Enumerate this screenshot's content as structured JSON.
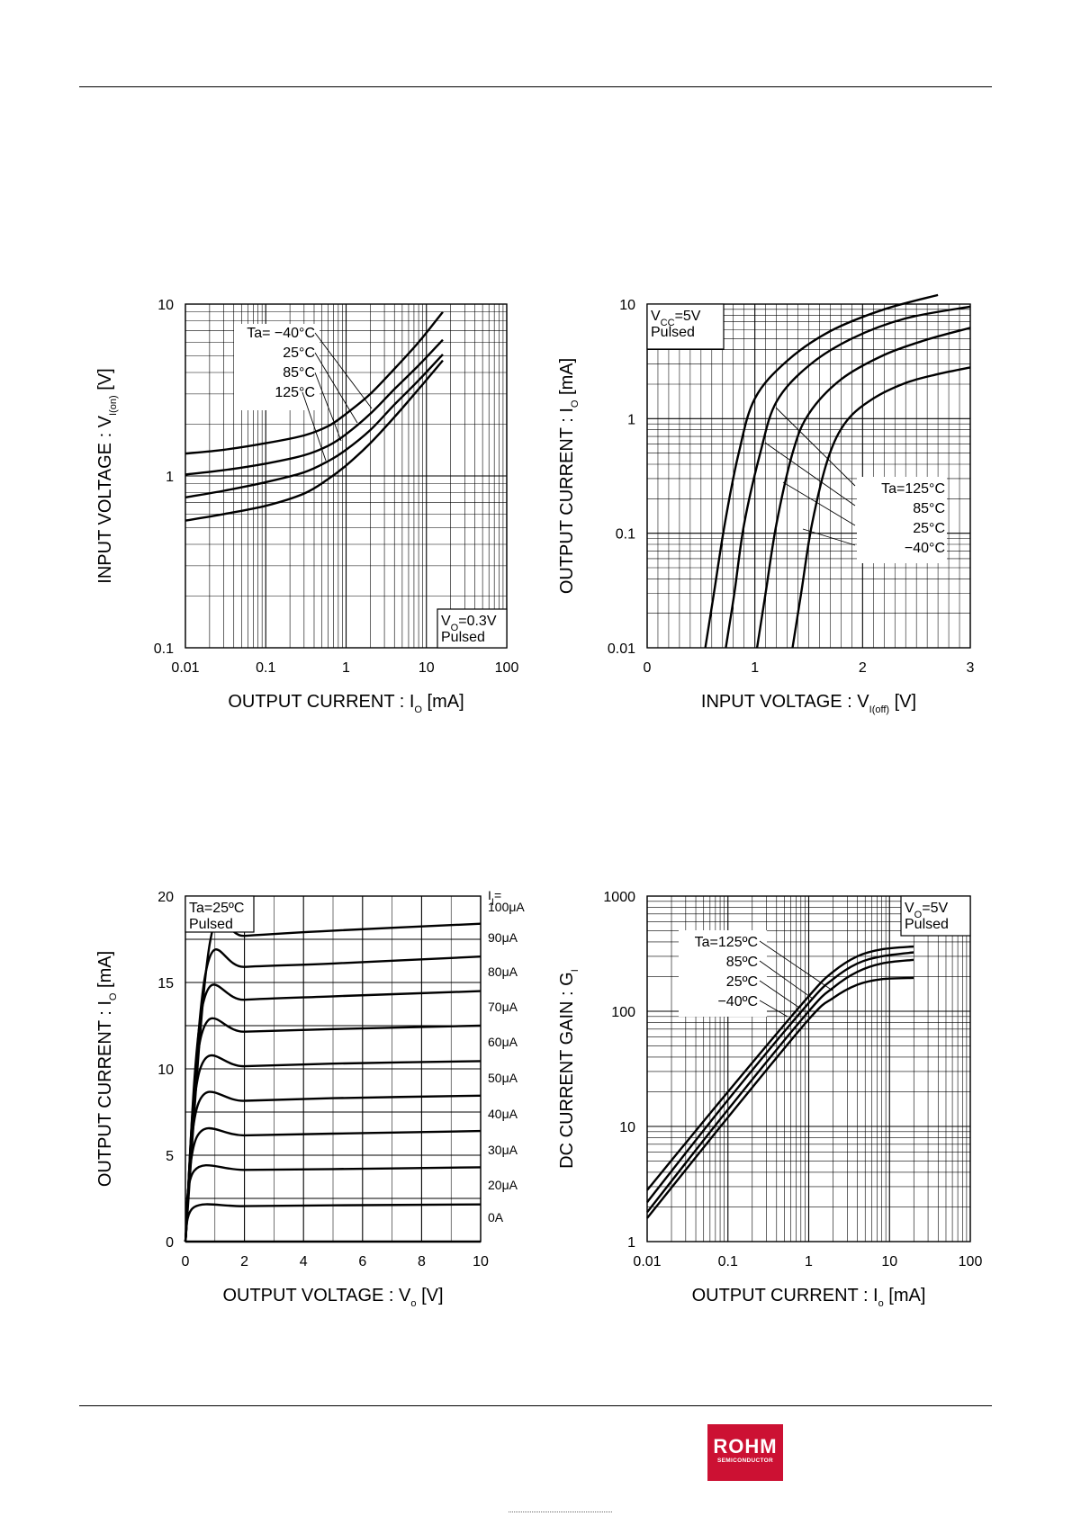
{
  "brand": {
    "logo_text": "ROHM",
    "logo_subtext": "SEMICONDUCTOR",
    "color": "#cc1133"
  },
  "chart_data": [
    {
      "type": "line",
      "xscale": "log",
      "yscale": "log",
      "xlim": [
        0.01,
        100
      ],
      "ylim": [
        0.1,
        10
      ],
      "x_ticks": [
        "0.01",
        "0.1",
        "1",
        "10",
        "100"
      ],
      "y_ticks": [
        "0.1",
        "1",
        "10"
      ],
      "xlabel": {
        "main": "OUTPUT CURRENT : I",
        "sub": "O",
        "unit": " [mA]"
      },
      "ylabel": {
        "main": "INPUT VOLTAGE : V",
        "sub": "I(on)",
        "unit": " [V]"
      },
      "condition": {
        "line1_main": "V",
        "line1_sub": "O",
        "line1_rest": "=0.3V",
        "line2": "Pulsed"
      },
      "legend": {
        "lines": [
          "Ta= −40°C",
          "25°C",
          "85°C",
          "125°C"
        ]
      },
      "series": [
        {
          "name": "Ta=−40°C",
          "x": [
            0.01,
            0.03,
            0.1,
            0.3,
            0.6,
            1,
            2,
            4,
            8,
            16
          ],
          "y": [
            1.35,
            1.42,
            1.55,
            1.72,
            1.95,
            2.3,
            3.0,
            4.2,
            6.0,
            9.0
          ]
        },
        {
          "name": "25°C",
          "x": [
            0.01,
            0.03,
            0.1,
            0.3,
            0.6,
            1,
            2,
            4,
            8,
            16
          ],
          "y": [
            1.02,
            1.08,
            1.18,
            1.32,
            1.5,
            1.75,
            2.3,
            3.2,
            4.4,
            6.2
          ]
        },
        {
          "name": "85°C",
          "x": [
            0.01,
            0.03,
            0.1,
            0.3,
            0.6,
            1,
            2,
            4,
            8,
            16
          ],
          "y": [
            0.75,
            0.82,
            0.92,
            1.05,
            1.22,
            1.42,
            1.85,
            2.6,
            3.6,
            5.1
          ]
        },
        {
          "name": "125°C",
          "x": [
            0.01,
            0.03,
            0.1,
            0.3,
            0.6,
            1,
            2,
            4,
            8,
            16
          ],
          "y": [
            0.55,
            0.6,
            0.67,
            0.79,
            0.96,
            1.15,
            1.55,
            2.2,
            3.2,
            4.7
          ]
        }
      ]
    },
    {
      "type": "line",
      "xscale": "linear",
      "yscale": "log",
      "xlim": [
        0,
        3
      ],
      "ylim": [
        0.01,
        10
      ],
      "x_ticks": [
        "0",
        "1",
        "2",
        "3"
      ],
      "y_ticks": [
        "0.01",
        "0.1",
        "1",
        "10"
      ],
      "xlabel": {
        "main": "INPUT VOLTAGE : V",
        "sub": "I(off)",
        "unit": " [V]"
      },
      "ylabel": {
        "main": "OUTPUT CURRENT : I",
        "sub": "O",
        "unit": " [mA]"
      },
      "condition": {
        "line1_main": "V",
        "line1_sub": "CC",
        "line1_rest": "=5V",
        "line2": "Pulsed"
      },
      "legend": {
        "lines": [
          "Ta=125°C",
          "85°C",
          "25°C",
          "−40°C"
        ]
      },
      "series": [
        {
          "name": "Ta=125°C",
          "x": [
            0.54,
            0.62,
            0.72,
            0.85,
            1.0,
            1.3,
            1.7,
            2.2,
            2.7
          ],
          "y": [
            0.01,
            0.03,
            0.12,
            0.5,
            1.5,
            3.2,
            5.8,
            9.0,
            12.0
          ]
        },
        {
          "name": "85°C",
          "x": [
            0.73,
            0.81,
            0.9,
            1.05,
            1.2,
            1.5,
            1.9,
            2.4,
            3.0
          ],
          "y": [
            0.01,
            0.03,
            0.12,
            0.5,
            1.4,
            2.9,
            5.0,
            7.5,
            9.5
          ]
        },
        {
          "name": "25°C",
          "x": [
            1.02,
            1.1,
            1.2,
            1.35,
            1.5,
            1.8,
            2.2,
            2.6,
            3.0
          ],
          "y": [
            0.01,
            0.03,
            0.12,
            0.5,
            1.1,
            2.2,
            3.6,
            4.9,
            6.2
          ]
        },
        {
          "name": "−40°C",
          "x": [
            1.35,
            1.43,
            1.53,
            1.68,
            1.85,
            2.1,
            2.4,
            2.7,
            3.0
          ],
          "y": [
            0.01,
            0.03,
            0.12,
            0.45,
            0.95,
            1.5,
            2.05,
            2.45,
            2.8
          ]
        }
      ]
    },
    {
      "type": "line",
      "xscale": "linear",
      "yscale": "linear",
      "xlim": [
        0,
        10
      ],
      "ylim": [
        0,
        20
      ],
      "x_ticks": [
        "0",
        "2",
        "4",
        "6",
        "8",
        "10"
      ],
      "y_ticks": [
        "0",
        "5",
        "10",
        "15",
        "20"
      ],
      "xlabel": {
        "main": "OUTPUT VOLTAGE : V",
        "sub": "o",
        "unit": " [V]"
      },
      "ylabel": {
        "main": "OUTPUT CURRENT : I",
        "sub": "O",
        "unit": " [mA]"
      },
      "condition": {
        "line1_main": "Ta=25ºC",
        "line1_sub": "",
        "line1_rest": "",
        "line2": "Pulsed"
      },
      "series_header": {
        "main": "I",
        "sub": "I",
        "rest": "="
      },
      "series": [
        {
          "name": "0A",
          "x": [
            0,
            10
          ],
          "y": [
            0,
            0
          ]
        },
        {
          "name": "20μA",
          "x": [
            0,
            0.3,
            2,
            5,
            10
          ],
          "y": [
            0,
            2.0,
            2.05,
            2.1,
            2.15
          ]
        },
        {
          "name": "30μA",
          "x": [
            0,
            0.3,
            2,
            5,
            10
          ],
          "y": [
            0,
            4.1,
            4.15,
            4.2,
            4.3
          ]
        },
        {
          "name": "40μA",
          "x": [
            0,
            0.4,
            2,
            5,
            10
          ],
          "y": [
            0,
            6.1,
            6.15,
            6.25,
            6.4
          ]
        },
        {
          "name": "50μA",
          "x": [
            0,
            0.45,
            2,
            5,
            10
          ],
          "y": [
            0,
            8.05,
            8.15,
            8.3,
            8.45
          ]
        },
        {
          "name": "60μA",
          "x": [
            0,
            0.5,
            2,
            5,
            10
          ],
          "y": [
            0,
            10.0,
            10.15,
            10.3,
            10.45
          ]
        },
        {
          "name": "70μA",
          "x": [
            0,
            0.55,
            2,
            5,
            10
          ],
          "y": [
            0,
            12.0,
            12.15,
            12.3,
            12.5
          ]
        },
        {
          "name": "80μA",
          "x": [
            0,
            0.6,
            2,
            5,
            10
          ],
          "y": [
            0,
            13.8,
            14.0,
            14.2,
            14.5
          ]
        },
        {
          "name": "90μA",
          "x": [
            0,
            0.7,
            2,
            5,
            10
          ],
          "y": [
            0,
            15.7,
            15.9,
            16.1,
            16.5
          ]
        },
        {
          "name": "100μA",
          "x": [
            0,
            0.85,
            2,
            5,
            10
          ],
          "y": [
            0,
            17.5,
            17.7,
            18.0,
            18.4
          ]
        }
      ]
    },
    {
      "type": "line",
      "xscale": "log",
      "yscale": "log",
      "xlim": [
        0.01,
        100
      ],
      "ylim": [
        1,
        1000
      ],
      "x_ticks": [
        "0.01",
        "0.1",
        "1",
        "10",
        "100"
      ],
      "y_ticks": [
        "1",
        "10",
        "100",
        "1000"
      ],
      "xlabel": {
        "main": "OUTPUT CURRENT : I",
        "sub": "o",
        "unit": " [mA]"
      },
      "ylabel": {
        "main": "DC CURRENT GAIN : G",
        "sub": "I",
        "unit": ""
      },
      "condition": {
        "line1_main": "V",
        "line1_sub": "O",
        "line1_rest": "=5V",
        "line2": "Pulsed"
      },
      "legend": {
        "lines": [
          "Ta=125ºC",
          "85ºC",
          "25ºC",
          "−40ºC"
        ]
      },
      "series": [
        {
          "name": "Ta=125ºC",
          "x": [
            0.01,
            0.1,
            1,
            2,
            4,
            8,
            20
          ],
          "y": [
            2.8,
            20,
            135,
            220,
            300,
            345,
            365
          ]
        },
        {
          "name": "85ºC",
          "x": [
            0.01,
            0.1,
            1,
            2,
            4,
            8,
            20
          ],
          "y": [
            2.2,
            17,
            118,
            190,
            260,
            300,
            325
          ]
        },
        {
          "name": "25ºC",
          "x": [
            0.01,
            0.1,
            1,
            2,
            4,
            8,
            20
          ],
          "y": [
            1.8,
            14,
            100,
            160,
            220,
            260,
            280
          ]
        },
        {
          "name": "−40ºC",
          "x": [
            0.01,
            0.1,
            1,
            2,
            4,
            8,
            20
          ],
          "y": [
            1.6,
            12,
            85,
            130,
            170,
            190,
            195
          ]
        }
      ]
    }
  ]
}
